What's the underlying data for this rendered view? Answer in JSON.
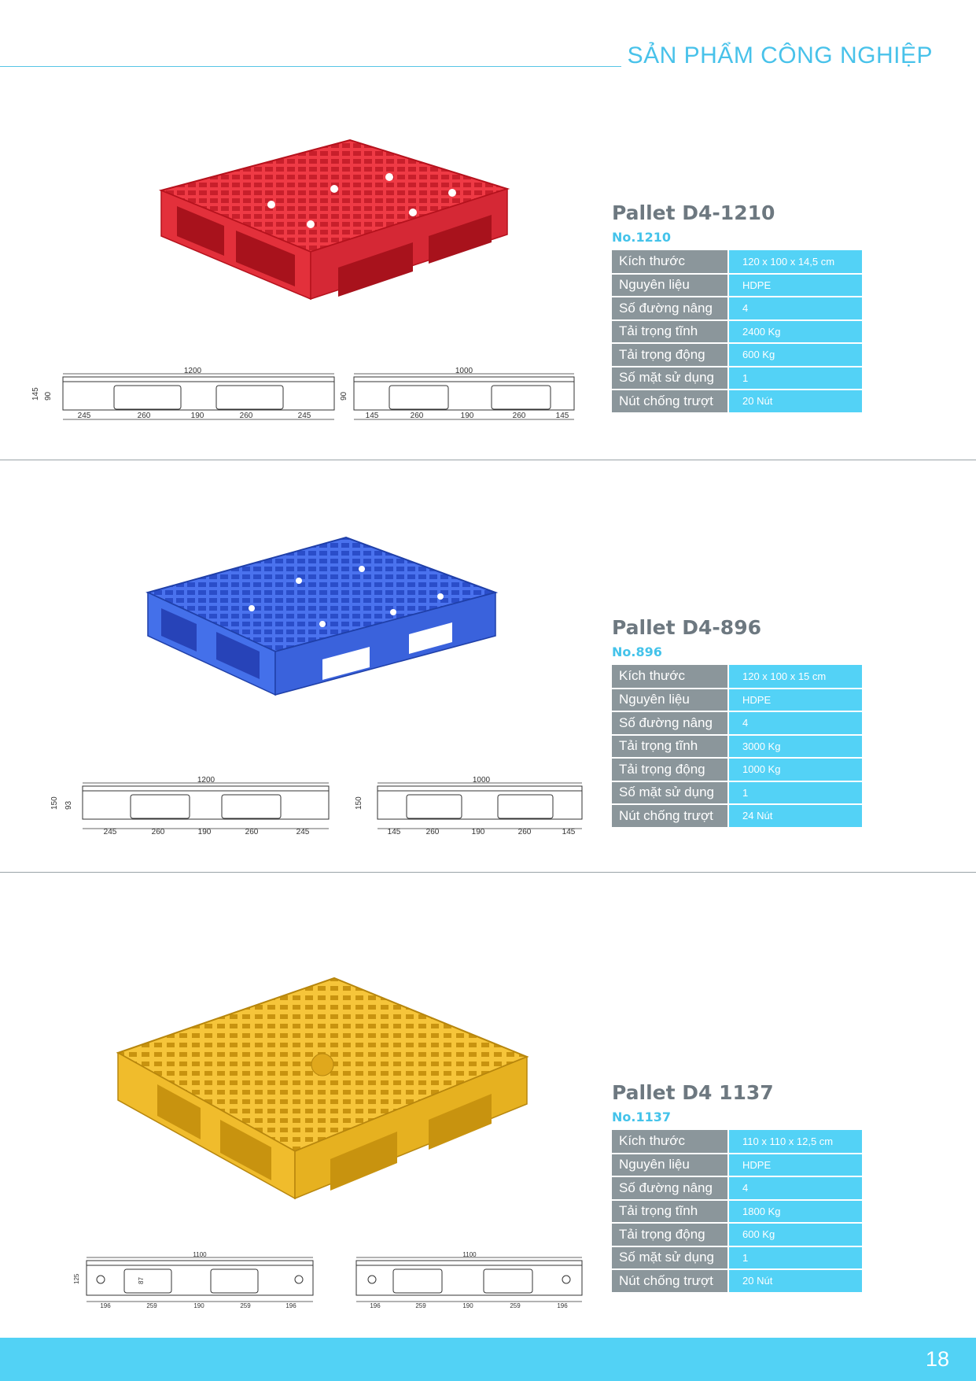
{
  "header": {
    "title": "SẢN PHẨM CÔNG NGHIỆP"
  },
  "colors": {
    "accent": "#48c2ea",
    "table_key_bg": "#8b969b",
    "table_value_bg": "#53d2f6",
    "footer_bg": "#52d2f5"
  },
  "products": [
    {
      "name": "Pallet D4-1210",
      "number": "No.1210",
      "pallet_color": "#e8303c",
      "specs": [
        {
          "label": "Kích thước",
          "value": "120 x 100 x 14,5 cm"
        },
        {
          "label": "Nguyên liệu",
          "value": "HDPE"
        },
        {
          "label": "Số đường nâng",
          "value": "4"
        },
        {
          "label": "Tải trọng tĩnh",
          "value": "2400 Kg"
        },
        {
          "label": "Tải trọng động",
          "value": "600 Kg"
        },
        {
          "label": "Số mặt sử dụng",
          "value": "1"
        },
        {
          "label": "Nút chống trượt",
          "value": "20 Nút"
        }
      ],
      "drawing_long": {
        "total": "1200",
        "heights": [
          "145",
          "90"
        ],
        "segments": [
          "245",
          "260",
          "190",
          "260",
          "245"
        ]
      },
      "drawing_short": {
        "total": "1000",
        "heights": [
          "90"
        ],
        "segments": [
          "145",
          "260",
          "190",
          "260",
          "145"
        ]
      }
    },
    {
      "name": "Pallet D4-896",
      "number": "No.896",
      "pallet_color": "#3c66e6",
      "specs": [
        {
          "label": "Kích thước",
          "value": "120 x 100 x 15 cm"
        },
        {
          "label": "Nguyên liệu",
          "value": "HDPE"
        },
        {
          "label": "Số đường nâng",
          "value": "4"
        },
        {
          "label": "Tải trọng tĩnh",
          "value": "3000 Kg"
        },
        {
          "label": "Tải trọng động",
          "value": "1000 Kg"
        },
        {
          "label": "Số mặt sử dụng",
          "value": "1"
        },
        {
          "label": "Nút chống trượt",
          "value": "24 Nút"
        }
      ],
      "drawing_long": {
        "total": "1200",
        "heights": [
          "150",
          "93"
        ],
        "segments": [
          "245",
          "260",
          "190",
          "260",
          "245"
        ]
      },
      "drawing_short": {
        "total": "1000",
        "heights": [
          "150"
        ],
        "segments": [
          "145",
          "260",
          "190",
          "260",
          "145"
        ]
      }
    },
    {
      "name": "Pallet D4 1137",
      "number": "No.1137",
      "pallet_color": "#f2be28",
      "specs": [
        {
          "label": "Kích thước",
          "value": "110 x 110 x 12,5 cm"
        },
        {
          "label": "Nguyên liệu",
          "value": "HDPE"
        },
        {
          "label": "Số đường nâng",
          "value": "4"
        },
        {
          "label": "Tải trọng tĩnh",
          "value": "1800 Kg"
        },
        {
          "label": "Tải trọng động",
          "value": "600 Kg"
        },
        {
          "label": "Số mặt sử dụng",
          "value": "1"
        },
        {
          "label": "Nút chống trượt",
          "value": "20 Nút"
        }
      ],
      "drawing_long": {
        "total": "1100",
        "heights": [
          "125",
          "87"
        ],
        "segments": [
          "196",
          "259",
          "190",
          "259",
          "196"
        ]
      },
      "drawing_short": {
        "total": "1100",
        "heights": [],
        "segments": [
          "196",
          "259",
          "190",
          "259",
          "196"
        ]
      }
    }
  ],
  "footer": {
    "page_number": "18"
  }
}
